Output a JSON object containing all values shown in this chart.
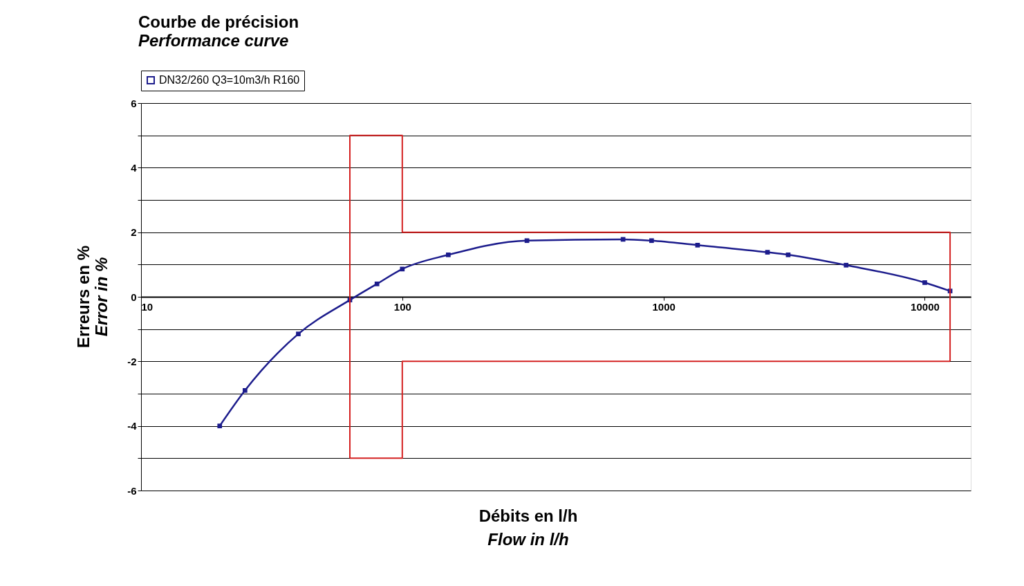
{
  "chart_data": {
    "type": "line",
    "title": "Courbe de précision",
    "subtitle": "Performance curve",
    "xlabel": "Débits en l/h\nFlow in l/h",
    "ylabel": "Erreurs en %\nError in %",
    "log": "x",
    "xlim": [
      10,
      15000
    ],
    "xticks": [
      10,
      100,
      1000,
      10000
    ],
    "ylim": [
      -6,
      6
    ],
    "yticks": [
      -6,
      {
        "value": -5,
        "label": null
      },
      -4,
      {
        "value": -3,
        "label": null
      },
      -2,
      {
        "value": -1,
        "label": null
      },
      0,
      {
        "value": 1,
        "label": null
      },
      2,
      {
        "value": 3,
        "label": null
      },
      4,
      {
        "value": 5,
        "label": null
      },
      6
    ],
    "grid": "y",
    "legend": "top",
    "marker": "square",
    "line_style": "solid",
    "series": [
      {
        "name": "DN32/260 Q3=10m3/h R160",
        "color": "#1c1c8c",
        "x": [
          20,
          25,
          40,
          63,
          80,
          100,
          150,
          300,
          700,
          900,
          1350,
          2500,
          3000,
          5000,
          10000,
          12500
        ],
        "values": [
          -4,
          -2.9,
          -1.15,
          -0.1,
          0.4,
          0.86,
          1.3,
          1.74,
          1.78,
          1.74,
          1.6,
          1.38,
          1.3,
          0.98,
          0.44,
          0.18
        ]
      },
      {
        "type": "line",
        "marker": "none",
        "color": "#d42020",
        "x": [
          63,
          63,
          100,
          100,
          12500,
          12500
        ],
        "values": [
          -5,
          5,
          5,
          2,
          2,
          -2
        ]
      },
      {
        "type": "line",
        "marker": "none",
        "color": "#d42020",
        "x": [
          63,
          100,
          100,
          12500
        ],
        "values": [
          -5,
          -5,
          -2,
          -2
        ]
      }
    ]
  }
}
